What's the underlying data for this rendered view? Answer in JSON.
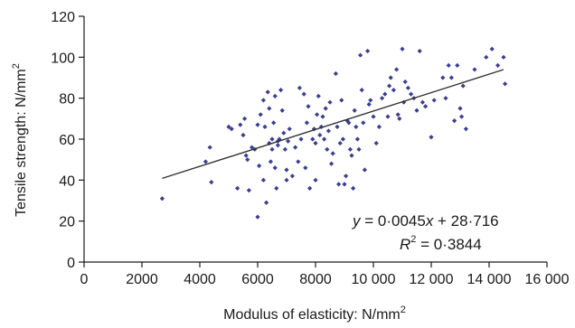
{
  "chart_data": {
    "type": "scatter",
    "xlabel": "Modulus of elasticity: N/mm",
    "xlabel_sup": "2",
    "ylabel": "Tensile strength: N/mm",
    "ylabel_sup": "2",
    "xlim": [
      0,
      16000
    ],
    "ylim": [
      0,
      120
    ],
    "x_ticks": [
      0,
      2000,
      4000,
      6000,
      8000,
      10000,
      12000,
      14000,
      16000
    ],
    "x_tick_labels": [
      "0",
      "2000",
      "4000",
      "6000",
      "8000",
      "10 000",
      "12 000",
      "14 000",
      "16 000"
    ],
    "y_ticks": [
      0,
      20,
      40,
      60,
      80,
      100,
      120
    ],
    "y_tick_labels": [
      "0",
      "20",
      "40",
      "60",
      "80",
      "100",
      "120"
    ],
    "grid": false,
    "marker_color": "#3a3f8f",
    "trendline": {
      "slope": 0.0045,
      "intercept": 28.716,
      "x_start": 2700,
      "x_end": 14500
    },
    "equation": {
      "y": "y",
      "equals1": " = 0·0045",
      "x": "x",
      "rest": " + 28·716",
      "r": "R",
      "r_sup": "2",
      "equals2": " = 0·3844"
    },
    "points": [
      [
        2700,
        31
      ],
      [
        4200,
        49
      ],
      [
        4350,
        56
      ],
      [
        4400,
        39
      ],
      [
        5000,
        66
      ],
      [
        5100,
        65
      ],
      [
        5300,
        36
      ],
      [
        5400,
        67
      ],
      [
        5500,
        62
      ],
      [
        5550,
        70
      ],
      [
        5600,
        52
      ],
      [
        5650,
        50
      ],
      [
        5700,
        35
      ],
      [
        5800,
        56
      ],
      [
        5900,
        55
      ],
      [
        6000,
        22
      ],
      [
        6000,
        67
      ],
      [
        6050,
        47
      ],
      [
        6100,
        72
      ],
      [
        6200,
        40
      ],
      [
        6200,
        79
      ],
      [
        6250,
        66
      ],
      [
        6300,
        29
      ],
      [
        6350,
        83
      ],
      [
        6400,
        58
      ],
      [
        6400,
        75
      ],
      [
        6450,
        49
      ],
      [
        6500,
        60
      ],
      [
        6500,
        55
      ],
      [
        6550,
        68
      ],
      [
        6600,
        46
      ],
      [
        6600,
        81
      ],
      [
        6650,
        36
      ],
      [
        6700,
        59
      ],
      [
        6700,
        57
      ],
      [
        6750,
        60
      ],
      [
        6800,
        84
      ],
      [
        6850,
        74
      ],
      [
        6900,
        63
      ],
      [
        6950,
        55
      ],
      [
        7000,
        40
      ],
      [
        7000,
        45
      ],
      [
        7050,
        59
      ],
      [
        7100,
        65
      ],
      [
        7200,
        42
      ],
      [
        7300,
        56
      ],
      [
        7400,
        49
      ],
      [
        7450,
        85
      ],
      [
        7500,
        60
      ],
      [
        7600,
        82
      ],
      [
        7650,
        46
      ],
      [
        7700,
        68
      ],
      [
        7750,
        76
      ],
      [
        7800,
        36
      ],
      [
        7900,
        60
      ],
      [
        7950,
        65
      ],
      [
        8000,
        58
      ],
      [
        8000,
        40
      ],
      [
        8050,
        72
      ],
      [
        8100,
        81
      ],
      [
        8150,
        62
      ],
      [
        8200,
        66
      ],
      [
        8250,
        71
      ],
      [
        8300,
        60
      ],
      [
        8350,
        75
      ],
      [
        8400,
        55
      ],
      [
        8450,
        64
      ],
      [
        8500,
        78
      ],
      [
        8550,
        48
      ],
      [
        8600,
        53
      ],
      [
        8700,
        92
      ],
      [
        8750,
        66
      ],
      [
        8800,
        38
      ],
      [
        8850,
        58
      ],
      [
        8900,
        79
      ],
      [
        8950,
        60
      ],
      [
        9000,
        38
      ],
      [
        9050,
        42
      ],
      [
        9100,
        69
      ],
      [
        9150,
        68
      ],
      [
        9200,
        55
      ],
      [
        9250,
        52
      ],
      [
        9300,
        36
      ],
      [
        9350,
        74
      ],
      [
        9400,
        66
      ],
      [
        9450,
        60
      ],
      [
        9500,
        55
      ],
      [
        9550,
        101
      ],
      [
        9600,
        84
      ],
      [
        9650,
        68
      ],
      [
        9700,
        45
      ],
      [
        9800,
        103
      ],
      [
        9850,
        77
      ],
      [
        9900,
        79
      ],
      [
        10000,
        71
      ],
      [
        10100,
        58
      ],
      [
        10200,
        66
      ],
      [
        10300,
        80
      ],
      [
        10400,
        82
      ],
      [
        10500,
        71
      ],
      [
        10550,
        86
      ],
      [
        10600,
        90
      ],
      [
        10700,
        84
      ],
      [
        10800,
        94
      ],
      [
        10850,
        72
      ],
      [
        10900,
        70
      ],
      [
        11000,
        104
      ],
      [
        11050,
        78
      ],
      [
        11100,
        88
      ],
      [
        11200,
        85
      ],
      [
        11300,
        82
      ],
      [
        11400,
        80
      ],
      [
        11500,
        74
      ],
      [
        11600,
        103
      ],
      [
        11700,
        78
      ],
      [
        11800,
        76
      ],
      [
        12000,
        61
      ],
      [
        12100,
        79
      ],
      [
        12400,
        90
      ],
      [
        12500,
        80
      ],
      [
        12600,
        96
      ],
      [
        12700,
        90
      ],
      [
        12800,
        69
      ],
      [
        12900,
        96
      ],
      [
        13000,
        75
      ],
      [
        13050,
        71
      ],
      [
        13100,
        86
      ],
      [
        13200,
        65
      ],
      [
        13500,
        94
      ],
      [
        13900,
        100
      ],
      [
        14100,
        104
      ],
      [
        14300,
        96
      ],
      [
        14500,
        100
      ],
      [
        14550,
        87
      ]
    ]
  }
}
